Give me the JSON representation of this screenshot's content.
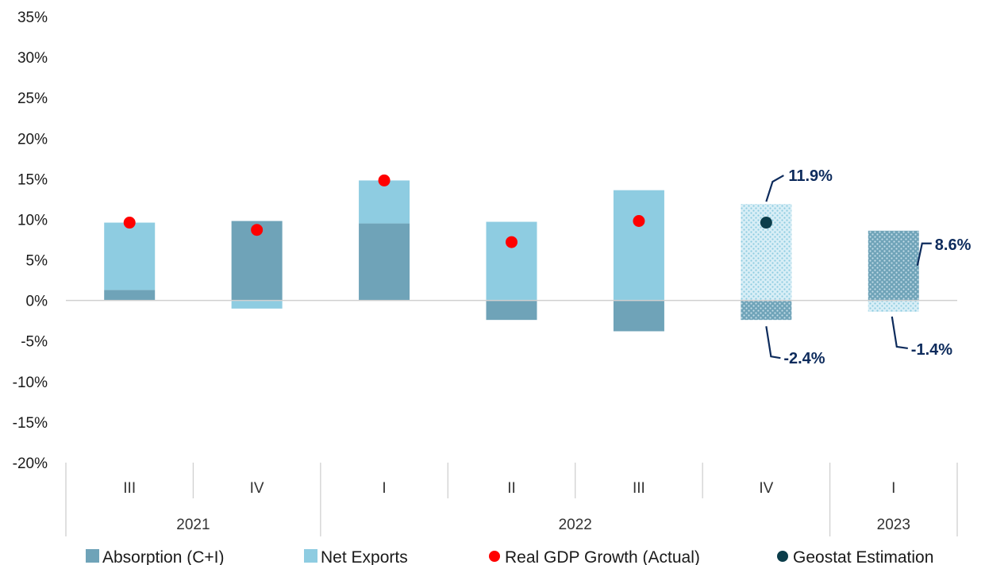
{
  "chart_data": {
    "type": "bar",
    "stacked": true,
    "categories": [
      "III",
      "IV",
      "I",
      "II",
      "III",
      "IV",
      "I"
    ],
    "year_groups": [
      {
        "label": "2021",
        "span": 2
      },
      {
        "label": "2022",
        "span": 4
      },
      {
        "label": "2023",
        "span": 1
      }
    ],
    "estimated_from_index": 5,
    "series": [
      {
        "name": "Absorption (C+I)",
        "color": "#6FA3B8",
        "values": [
          1.3,
          9.8,
          9.5,
          -2.4,
          -3.8,
          -2.4,
          8.6
        ]
      },
      {
        "name": "Net Exports",
        "color": "#8ECCE1",
        "values": [
          8.3,
          -1.0,
          5.3,
          9.7,
          13.6,
          11.9,
          -1.4
        ]
      }
    ],
    "points": [
      {
        "name": "Real GDP Growth (Actual)",
        "color": "#FF0000",
        "values": [
          9.6,
          8.7,
          14.8,
          7.2,
          9.8,
          null,
          null
        ]
      },
      {
        "name": "Geostat Estimation",
        "color": "#0B3D4A",
        "values": [
          null,
          null,
          null,
          null,
          null,
          9.6,
          null
        ]
      }
    ],
    "annotations": [
      {
        "label": "11.9%",
        "category_index": 5,
        "value": 11.9
      },
      {
        "label": "-2.4%",
        "category_index": 5,
        "value": -2.4
      },
      {
        "label": "8.6%",
        "category_index": 6,
        "value": 8.6
      },
      {
        "label": "-1.4%",
        "category_index": 6,
        "value": -1.4
      }
    ],
    "ylim": [
      -20,
      35
    ],
    "yticks": [
      35,
      30,
      25,
      20,
      15,
      10,
      5,
      0,
      -5,
      -10,
      -15,
      -20
    ],
    "ytick_labels": [
      "35%",
      "30%",
      "25%",
      "20%",
      "15%",
      "10%",
      "5%",
      "0%",
      "-5%",
      "-10%",
      "-15%",
      "-20%"
    ],
    "grid": false,
    "legend_position": "bottom"
  }
}
